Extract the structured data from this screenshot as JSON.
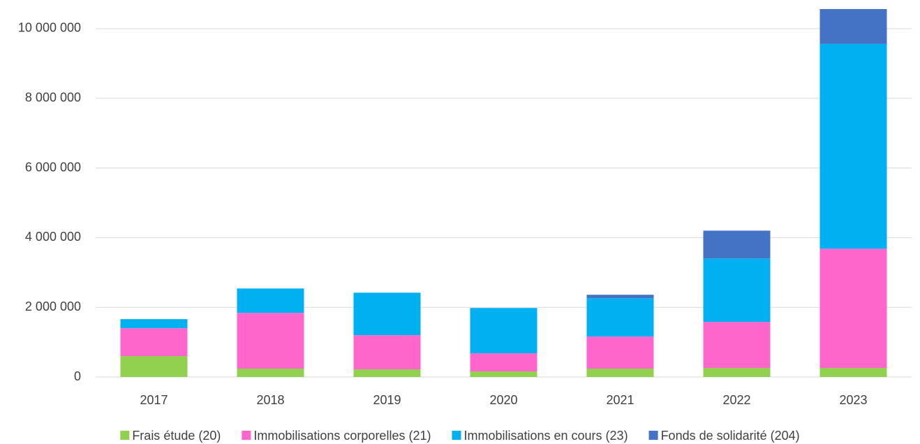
{
  "chart_data": {
    "type": "stacked_bar",
    "categories": [
      "2017",
      "2018",
      "2019",
      "2020",
      "2021",
      "2022",
      "2023"
    ],
    "series": [
      {
        "name": "Frais étude (20)",
        "color": "#92d050",
        "values": [
          600000,
          240000,
          220000,
          160000,
          240000,
          260000,
          260000
        ]
      },
      {
        "name": "Immobilisations corporelles (21)",
        "color": "#ff66cc",
        "values": [
          800000,
          1600000,
          980000,
          520000,
          920000,
          1320000,
          3420000
        ]
      },
      {
        "name": "Immobilisations en cours (23)",
        "color": "#00b0f0",
        "values": [
          260000,
          700000,
          1220000,
          1300000,
          1100000,
          1820000,
          5880000
        ]
      },
      {
        "name": "Fonds de solidarité (204)",
        "color": "#4472c4",
        "values": [
          0,
          0,
          0,
          0,
          100000,
          800000,
          1000000
        ]
      }
    ],
    "ylim": [
      0,
      10600000
    ],
    "yticks": [
      0,
      {
        "value": 2000000,
        "label": "2 000 000"
      },
      {
        "value": 4000000,
        "label": "4 000 000"
      },
      {
        "value": 6000000,
        "label": "6 000 000"
      },
      {
        "value": 8000000,
        "label": "8 000 000"
      },
      {
        "value": 10000000,
        "label": "10 000 000"
      }
    ],
    "grid": true,
    "legend": "bottom"
  }
}
